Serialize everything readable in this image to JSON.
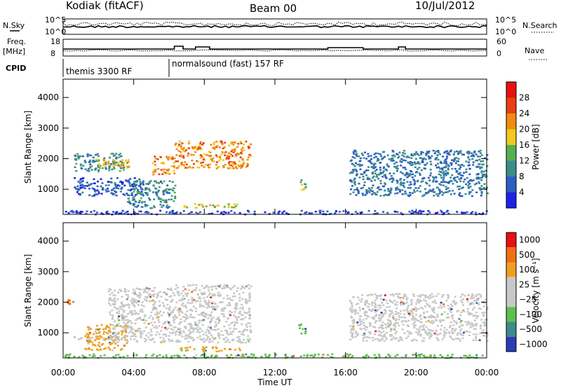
{
  "header": {
    "station": "Kodiak (fitACF)",
    "beam": "Beam 00",
    "date": "10/Jul/2012"
  },
  "top_panels": {
    "left_labels": {
      "nsky": "N.Sky",
      "freq": "Freq.",
      "mhz": "[MHz]",
      "cpid": "CPID"
    },
    "right_labels": {
      "nsearch": "N.Search",
      "nave": "Nave"
    },
    "noise_ticks": {
      "left": [
        "10^5",
        "10^0"
      ],
      "right": [
        "10^5",
        "10^0"
      ]
    },
    "freq_ticks": {
      "left": [
        "18",
        "8"
      ],
      "right": [
        "60",
        "0"
      ]
    },
    "cpid_segments": [
      {
        "label": "themis 3300 RF",
        "start_hour": 0.0,
        "end_hour": 6.0
      },
      {
        "label": "normalsound (fast) 157 RF",
        "start_hour": 6.0,
        "end_hour": 24.0
      }
    ]
  },
  "axes": {
    "x_label": "Time UT",
    "x_ticks": [
      "00:00",
      "04:00",
      "08:00",
      "12:00",
      "16:00",
      "20:00",
      "00:00"
    ],
    "y_label": "Slant Range [km]",
    "y_ticks": [
      "1000",
      "2000",
      "3000",
      "4000"
    ]
  },
  "colorbars": {
    "power": {
      "label": "Power [dB]",
      "ticks": [
        "4",
        "8",
        "12",
        "16",
        "20",
        "24",
        "28"
      ],
      "colors": [
        "#1e22e6",
        "#2e5ec2",
        "#3c8c8c",
        "#56b050",
        "#f0c820",
        "#f08a10",
        "#e84010",
        "#e81010"
      ]
    },
    "velocity": {
      "label": "Velocity [m s⁻¹]",
      "ticks": [
        "1000",
        "500",
        "100",
        "25",
        "−25",
        "−100",
        "−500",
        "−1000"
      ],
      "colors": [
        "#2a3cb4",
        "#3f8a8a",
        "#5ebf4f",
        "#c8c8c8",
        "#c8c8c8",
        "#f0a020",
        "#f07010",
        "#e81010"
      ]
    }
  },
  "chart_data": [
    {
      "type": "heatmap",
      "name": "Power",
      "x_unit": "hours UT",
      "y_unit": "km",
      "xlim": [
        0,
        24
      ],
      "ylim": [
        180,
        4600
      ],
      "regions": [
        {
          "x0": 0.6,
          "x1": 3.4,
          "y0": 1600,
          "y1": 2200,
          "value_db": 10
        },
        {
          "x0": 1.8,
          "x1": 3.8,
          "y0": 1700,
          "y1": 2000,
          "value_db": 18
        },
        {
          "x0": 0.6,
          "x1": 4.6,
          "y0": 800,
          "y1": 1400,
          "value_db": 6
        },
        {
          "x0": 3.6,
          "x1": 6.3,
          "y0": 400,
          "y1": 1300,
          "value_db": 10
        },
        {
          "x0": 5.0,
          "x1": 6.3,
          "y0": 1500,
          "y1": 2100,
          "value_db": 22
        },
        {
          "x0": 6.3,
          "x1": 10.6,
          "y0": 1700,
          "y1": 2600,
          "value_db": 22
        },
        {
          "x0": 6.5,
          "x1": 10.0,
          "y0": 420,
          "y1": 560,
          "value_db": 18
        },
        {
          "x0": 13.3,
          "x1": 13.7,
          "y0": 1000,
          "y1": 1400,
          "value_db": 14
        },
        {
          "x0": 16.2,
          "x1": 24.0,
          "y0": 800,
          "y1": 2300,
          "value_db": 8
        },
        {
          "x0": 0.0,
          "x1": 24.0,
          "y0": 200,
          "y1": 330,
          "value_db": 4
        }
      ]
    },
    {
      "type": "heatmap",
      "name": "Velocity",
      "x_unit": "hours UT",
      "y_unit": "km",
      "xlim": [
        0,
        24
      ],
      "ylim": [
        180,
        4600
      ],
      "regions": [
        {
          "x0": 0.2,
          "x1": 0.6,
          "y0": 1850,
          "y1": 2150,
          "value_ms": -500
        },
        {
          "x0": 0.5,
          "x1": 3.0,
          "y0": 800,
          "y1": 900,
          "value_ms": 0
        },
        {
          "x0": 1.2,
          "x1": 3.6,
          "y0": 450,
          "y1": 1300,
          "value_ms": -100
        },
        {
          "x0": 2.5,
          "x1": 6.3,
          "y0": 700,
          "y1": 2500,
          "value_ms": 0
        },
        {
          "x0": 6.3,
          "x1": 10.6,
          "y0": 700,
          "y1": 2600,
          "value_ms": 0
        },
        {
          "x0": 6.5,
          "x1": 10.0,
          "y0": 420,
          "y1": 560,
          "value_ms": -100
        },
        {
          "x0": 13.3,
          "x1": 13.7,
          "y0": 1000,
          "y1": 1400,
          "value_ms": 50
        },
        {
          "x0": 16.2,
          "x1": 24.0,
          "y0": 750,
          "y1": 2300,
          "value_ms": 0
        },
        {
          "x0": 0.0,
          "x1": 24.0,
          "y0": 200,
          "y1": 330,
          "value_ms": 50
        }
      ]
    }
  ]
}
